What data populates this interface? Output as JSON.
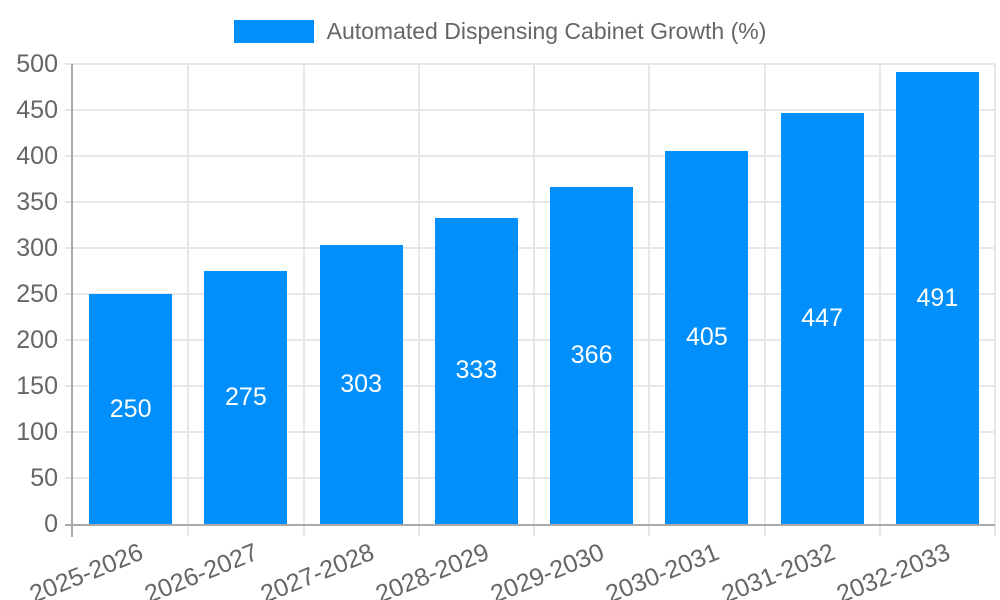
{
  "legend": {
    "series_label": "Automated Dispensing Cabinet Growth (%)"
  },
  "colors": {
    "bar": "#008FFB",
    "bar_label": "#ffffff",
    "axis_text": "#666666",
    "grid_line": "#e7e7e7",
    "axis_line": "#a9a9a9",
    "background": "#ffffff"
  },
  "chart_data": {
    "type": "bar",
    "title": "Automated Dispensing Cabinet Growth (%)",
    "categories": [
      "2025-2026",
      "2026-2027",
      "2027-2028",
      "2028-2029",
      "2029-2030",
      "2030-2031",
      "2031-2032",
      "2032-2033"
    ],
    "series": [
      {
        "name": "Automated Dispensing Cabinet Growth (%)",
        "values": [
          250,
          275,
          303,
          333,
          366,
          405,
          447,
          491
        ]
      }
    ],
    "values": [
      250,
      275,
      303,
      333,
      366,
      405,
      447,
      491
    ],
    "data_labels": {
      "enabled": true,
      "position": "center",
      "color": "#ffffff"
    },
    "xlabel": "",
    "ylabel": "",
    "ylim": [
      0,
      500
    ],
    "ytick_step": 50,
    "yticks": [
      0,
      50,
      100,
      150,
      200,
      250,
      300,
      350,
      400,
      450,
      500
    ],
    "grid": true,
    "legend_position": "top",
    "x_label_rotation_deg": -22
  }
}
